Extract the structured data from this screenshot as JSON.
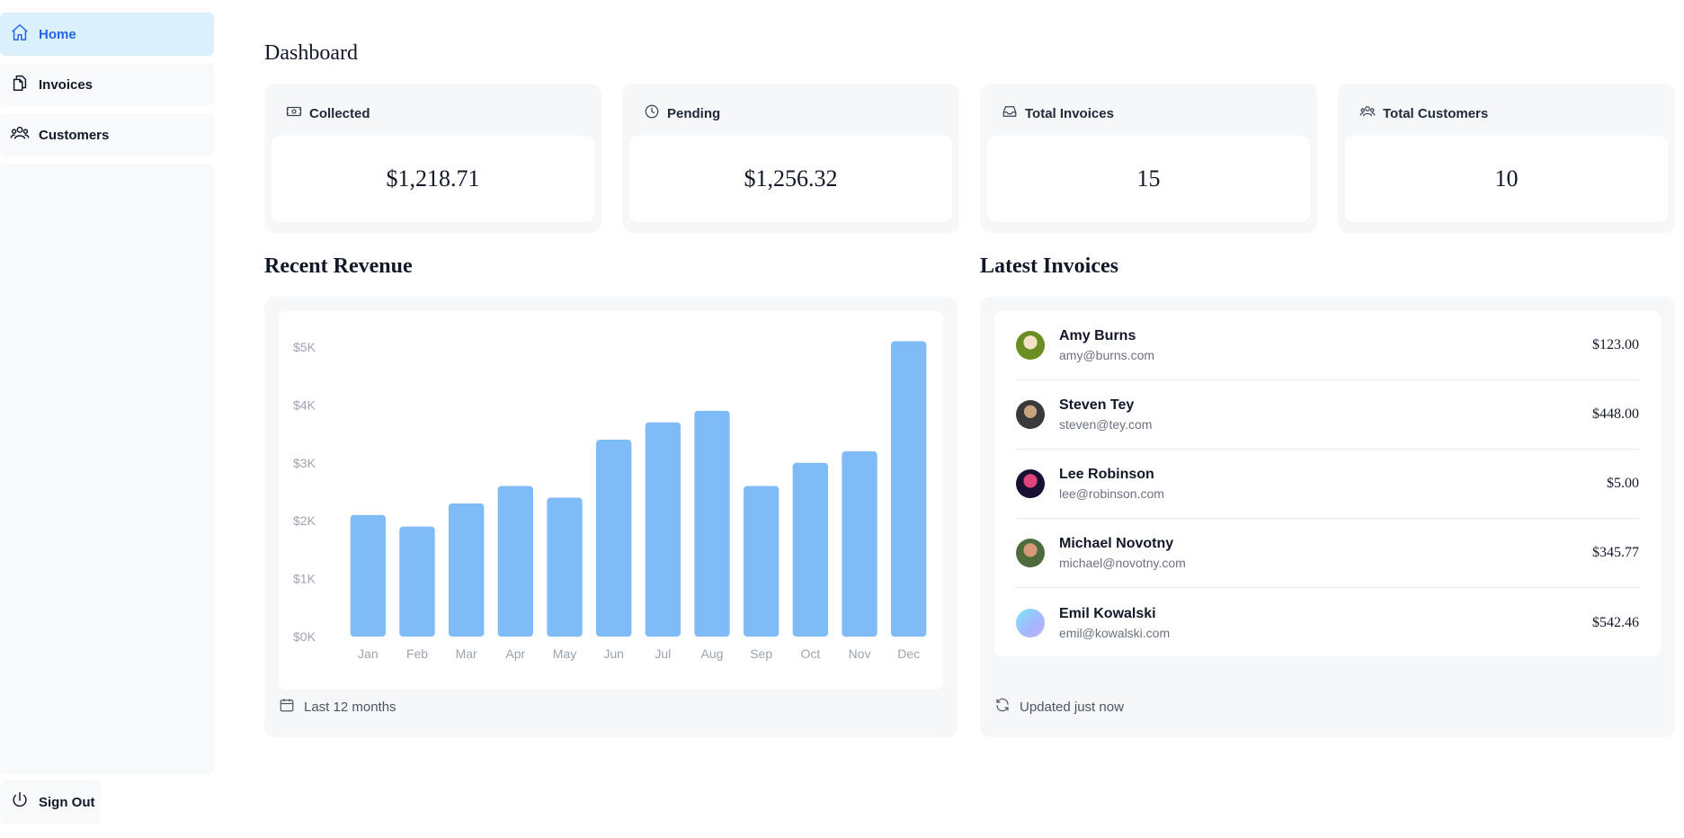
{
  "sidebar": {
    "items": [
      {
        "label": "Home",
        "icon": "home-icon",
        "active": true
      },
      {
        "label": "Invoices",
        "icon": "document-duplicate-icon",
        "active": false
      },
      {
        "label": "Customers",
        "icon": "user-group-icon",
        "active": false
      }
    ],
    "sign_out_label": "Sign Out"
  },
  "page": {
    "title": "Dashboard"
  },
  "cards": [
    {
      "title": "Collected",
      "value": "$1,218.71",
      "icon": "banknotes-icon"
    },
    {
      "title": "Pending",
      "value": "$1,256.32",
      "icon": "clock-icon"
    },
    {
      "title": "Total Invoices",
      "value": "15",
      "icon": "inbox-icon"
    },
    {
      "title": "Total Customers",
      "value": "10",
      "icon": "user-group-icon"
    }
  ],
  "revenue": {
    "title": "Recent Revenue",
    "footer": "Last 12 months"
  },
  "latest": {
    "title": "Latest Invoices",
    "footer": "Updated just now",
    "invoices": [
      {
        "name": "Amy Burns",
        "email": "amy@burns.com",
        "amount": "$123.00"
      },
      {
        "name": "Steven Tey",
        "email": "steven@tey.com",
        "amount": "$448.00"
      },
      {
        "name": "Lee Robinson",
        "email": "lee@robinson.com",
        "amount": "$5.00"
      },
      {
        "name": "Michael Novotny",
        "email": "michael@novotny.com",
        "amount": "$345.77"
      },
      {
        "name": "Emil Kowalski",
        "email": "emil@kowalski.com",
        "amount": "$542.46"
      }
    ]
  },
  "colors": {
    "accent": "#2563eb",
    "active_bg": "#daf0fc",
    "bar": "#7fbcf7"
  },
  "chart_data": {
    "type": "bar",
    "categories": [
      "Jan",
      "Feb",
      "Mar",
      "Apr",
      "May",
      "Jun",
      "Jul",
      "Aug",
      "Sep",
      "Oct",
      "Nov",
      "Dec"
    ],
    "values": [
      2100,
      1900,
      2300,
      2600,
      2400,
      3400,
      3700,
      3900,
      2600,
      3000,
      3200,
      5100
    ],
    "y_ticks": [
      "$0K",
      "$1K",
      "$2K",
      "$3K",
      "$4K",
      "$5K"
    ],
    "ylim": [
      0,
      5000
    ],
    "grid": false
  }
}
